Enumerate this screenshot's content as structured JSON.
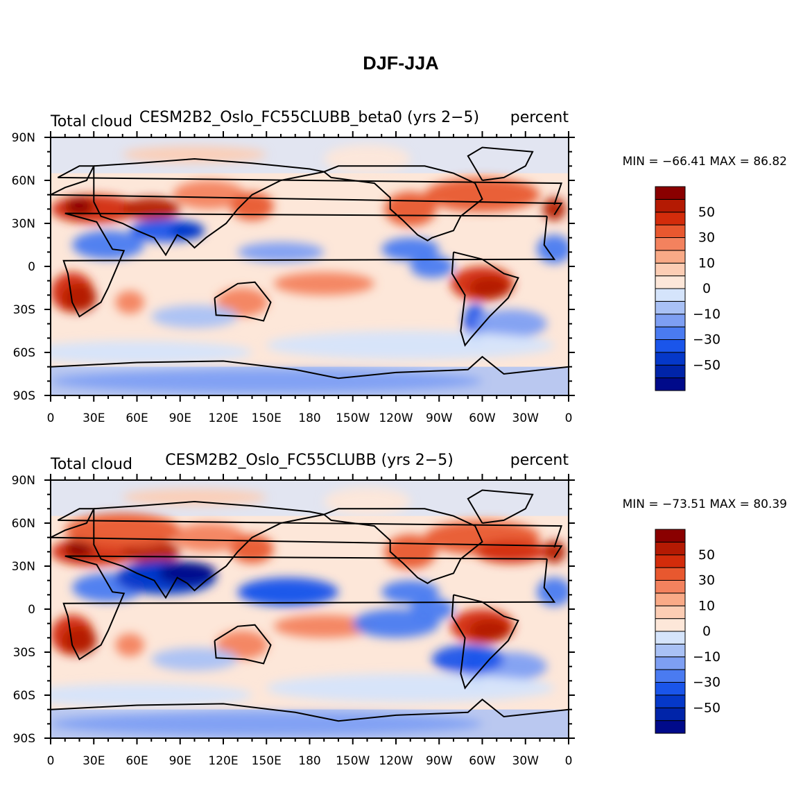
{
  "figure": {
    "title": "DJF-JJA"
  },
  "colorbar": {
    "colors": [
      "#000a8a",
      "#0024a9",
      "#0538c9",
      "#1a55ea",
      "#4a7bf1",
      "#7e9ff3",
      "#a9c1f5",
      "#d5e4fb",
      "#fde7d9",
      "#fccdb4",
      "#f9aa87",
      "#f3825e",
      "#e8582f",
      "#d32c0b",
      "#b41a03",
      "#8a0000"
    ],
    "labels": [
      {
        "idx": 2,
        "label": "−50"
      },
      {
        "idx": 4,
        "label": "−30"
      },
      {
        "idx": 6,
        "label": "−10"
      },
      {
        "idx": 8,
        "label": "0"
      },
      {
        "idx": 10,
        "label": "10"
      },
      {
        "idx": 12,
        "label": "30"
      },
      {
        "idx": 14,
        "label": "50"
      }
    ]
  },
  "chart_data": [
    {
      "type": "heatmap",
      "title_left": "Total cloud",
      "title_center": "CESM2B2_Oslo_FC55CLUBB_beta0 (yrs 2−5)",
      "title_right": "percent",
      "stats": "MIN = −66.41  MAX =  86.82",
      "min": -66.41,
      "max": 86.82,
      "xlabels": [
        "0",
        "30E",
        "60E",
        "90E",
        "120E",
        "150E",
        "180",
        "150W",
        "120W",
        "90W",
        "60W",
        "30W",
        "0"
      ],
      "ylabels": [
        "90N",
        "60N",
        "30N",
        "0",
        "30S",
        "60S",
        "90S"
      ],
      "xlim": [
        0,
        360
      ],
      "ylim": [
        -90,
        90
      ],
      "contour_levels": [
        -70,
        -60,
        -50,
        -40,
        -30,
        -20,
        -10,
        -5,
        0,
        5,
        10,
        20,
        30,
        40,
        50,
        60,
        70
      ]
    },
    {
      "type": "heatmap",
      "title_left": "Total cloud",
      "title_center": "CESM2B2_Oslo_FC55CLUBB (yrs 2−5)",
      "title_right": "percent",
      "stats": "MIN = −73.51  MAX =  80.39",
      "min": -73.51,
      "max": 80.39,
      "xlabels": [
        "0",
        "30E",
        "60E",
        "90E",
        "120E",
        "150E",
        "180",
        "150W",
        "120W",
        "90W",
        "60W",
        "30W",
        "0"
      ],
      "ylabels": [
        "90N",
        "60N",
        "30N",
        "0",
        "30S",
        "60S",
        "90S"
      ],
      "xlim": [
        0,
        360
      ],
      "ylim": [
        -90,
        90
      ],
      "contour_levels": [
        -70,
        -60,
        -50,
        -40,
        -30,
        -20,
        -10,
        -5,
        0,
        5,
        10,
        20,
        30,
        40,
        50,
        60,
        70
      ]
    }
  ]
}
